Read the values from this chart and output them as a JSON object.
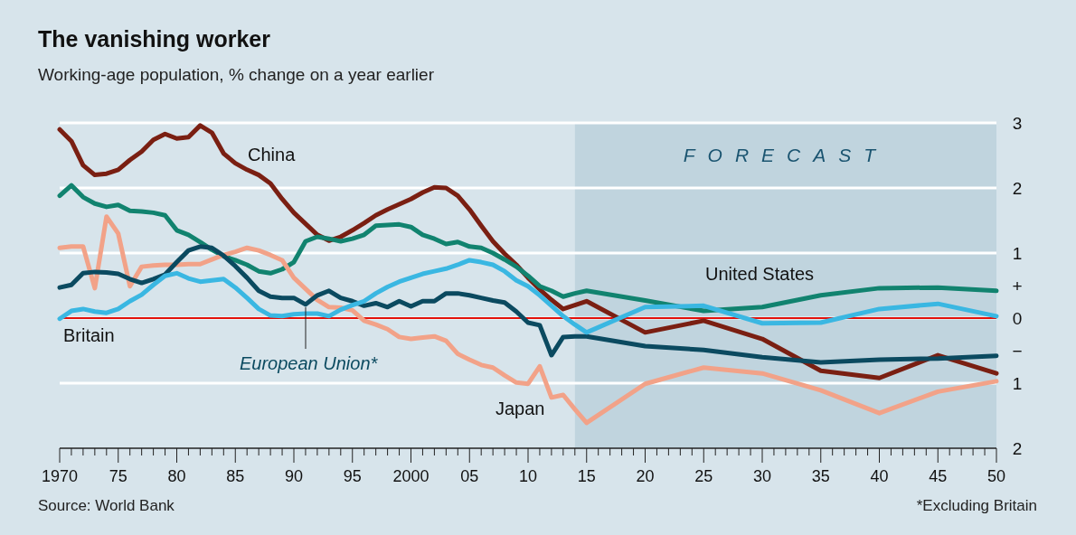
{
  "chart_data": {
    "type": "line",
    "title": "The vanishing worker",
    "subtitle": "Working-age population, % change on a year earlier",
    "xlim": [
      1970,
      2050
    ],
    "ylim": [
      -2,
      3
    ],
    "xticks": [
      {
        "value": 1970,
        "label": "1970"
      },
      {
        "value": 1971,
        "label": null
      },
      {
        "value": 1972,
        "label": null
      },
      {
        "value": 1973,
        "label": null
      },
      {
        "value": 1974,
        "label": null
      },
      {
        "value": 1975,
        "label": "75"
      },
      {
        "value": 1976,
        "label": null
      },
      {
        "value": 1977,
        "label": null
      },
      {
        "value": 1978,
        "label": null
      },
      {
        "value": 1979,
        "label": null
      },
      {
        "value": 1980,
        "label": "80"
      },
      {
        "value": 1981,
        "label": null
      },
      {
        "value": 1982,
        "label": null
      },
      {
        "value": 1983,
        "label": null
      },
      {
        "value": 1984,
        "label": null
      },
      {
        "value": 1985,
        "label": "85"
      },
      {
        "value": 1986,
        "label": null
      },
      {
        "value": 1987,
        "label": null
      },
      {
        "value": 1988,
        "label": null
      },
      {
        "value": 1989,
        "label": null
      },
      {
        "value": 1990,
        "label": "90"
      },
      {
        "value": 1991,
        "label": null
      },
      {
        "value": 1992,
        "label": null
      },
      {
        "value": 1993,
        "label": null
      },
      {
        "value": 1994,
        "label": null
      },
      {
        "value": 1995,
        "label": "95"
      },
      {
        "value": 1996,
        "label": null
      },
      {
        "value": 1997,
        "label": null
      },
      {
        "value": 1998,
        "label": null
      },
      {
        "value": 1999,
        "label": null
      },
      {
        "value": 2000,
        "label": "2000"
      },
      {
        "value": 2001,
        "label": null
      },
      {
        "value": 2002,
        "label": null
      },
      {
        "value": 2003,
        "label": null
      },
      {
        "value": 2004,
        "label": null
      },
      {
        "value": 2005,
        "label": "05"
      },
      {
        "value": 2006,
        "label": null
      },
      {
        "value": 2007,
        "label": null
      },
      {
        "value": 2008,
        "label": null
      },
      {
        "value": 2009,
        "label": null
      },
      {
        "value": 2010,
        "label": "10"
      },
      {
        "value": 2011,
        "label": null
      },
      {
        "value": 2012,
        "label": null
      },
      {
        "value": 2013,
        "label": null
      },
      {
        "value": 2014,
        "label": null
      },
      {
        "value": 2015,
        "label": "15"
      },
      {
        "value": 2016,
        "label": null
      },
      {
        "value": 2017,
        "label": null
      },
      {
        "value": 2018,
        "label": null
      },
      {
        "value": 2019,
        "label": null
      },
      {
        "value": 2020,
        "label": "20"
      },
      {
        "value": 2021,
        "label": null
      },
      {
        "value": 2022,
        "label": null
      },
      {
        "value": 2023,
        "label": null
      },
      {
        "value": 2024,
        "label": null
      },
      {
        "value": 2025,
        "label": "25"
      },
      {
        "value": 2026,
        "label": null
      },
      {
        "value": 2027,
        "label": null
      },
      {
        "value": 2028,
        "label": null
      },
      {
        "value": 2029,
        "label": null
      },
      {
        "value": 2030,
        "label": "30"
      },
      {
        "value": 2031,
        "label": null
      },
      {
        "value": 2032,
        "label": null
      },
      {
        "value": 2033,
        "label": null
      },
      {
        "value": 2034,
        "label": null
      },
      {
        "value": 2035,
        "label": "35"
      },
      {
        "value": 2036,
        "label": null
      },
      {
        "value": 2037,
        "label": null
      },
      {
        "value": 2038,
        "label": null
      },
      {
        "value": 2039,
        "label": null
      },
      {
        "value": 2040,
        "label": "40"
      },
      {
        "value": 2041,
        "label": null
      },
      {
        "value": 2042,
        "label": null
      },
      {
        "value": 2043,
        "label": null
      },
      {
        "value": 2044,
        "label": null
      },
      {
        "value": 2045,
        "label": "45"
      },
      {
        "value": 2046,
        "label": null
      },
      {
        "value": 2047,
        "label": null
      },
      {
        "value": 2048,
        "label": null
      },
      {
        "value": 2049,
        "label": null
      },
      {
        "value": 2050,
        "label": "50"
      }
    ],
    "yticks": [
      {
        "value": 3,
        "label": "3"
      },
      {
        "value": 2,
        "label": "2"
      },
      {
        "value": 1,
        "label": "1"
      },
      {
        "value": 0.5,
        "label": "+"
      },
      {
        "value": 0,
        "label": "0"
      },
      {
        "value": -0.5,
        "label": "−"
      },
      {
        "value": -1,
        "label": "1"
      },
      {
        "value": -2,
        "label": "2"
      }
    ],
    "grid": "y",
    "legend": false,
    "line_style": "solid",
    "marker": "none",
    "ref_lines": [
      {
        "axis": "y",
        "value": 0,
        "color": "#e3120b"
      }
    ],
    "bands": [
      {
        "axis": "x",
        "from": 2014,
        "to": 2050,
        "label": "FORECAST",
        "color": "#c0d4de"
      }
    ],
    "annotations": [
      "Source: World Bank",
      "*Excluding Britain"
    ],
    "series": [
      {
        "name": "China",
        "color": "#7a1f12",
        "x": [
          1970,
          1971,
          1972,
          1973,
          1974,
          1975,
          1976,
          1977,
          1978,
          1979,
          1980,
          1981,
          1982,
          1983,
          1984,
          1985,
          1986,
          1987,
          1988,
          1989,
          1990,
          1991,
          1992,
          1993,
          1994,
          1995,
          1996,
          1997,
          1998,
          1999,
          2000,
          2001,
          2002,
          2003,
          2004,
          2005,
          2006,
          2007,
          2008,
          2009,
          2010,
          2011,
          2012,
          2013,
          2014,
          2015,
          2020,
          2025,
          2030,
          2035,
          2040,
          2045,
          2050
        ],
        "values": [
          2.9,
          2.72,
          2.35,
          2.2,
          2.22,
          2.28,
          2.43,
          2.56,
          2.74,
          2.83,
          2.76,
          2.78,
          2.96,
          2.85,
          2.53,
          2.38,
          2.28,
          2.2,
          2.07,
          1.83,
          1.62,
          1.45,
          1.28,
          1.19,
          1.25,
          1.35,
          1.46,
          1.58,
          1.67,
          1.75,
          1.83,
          1.93,
          2.01,
          2.0,
          1.88,
          1.67,
          1.42,
          1.18,
          0.99,
          0.82,
          0.62,
          0.44,
          0.28,
          0.14,
          0.2,
          0.26,
          -0.22,
          -0.04,
          -0.32,
          -0.81,
          -0.92,
          -0.57,
          -0.85
        ]
      },
      {
        "name": "United States",
        "color": "#11836f",
        "x": [
          1970,
          1971,
          1972,
          1973,
          1974,
          1975,
          1976,
          1977,
          1978,
          1979,
          1980,
          1981,
          1982,
          1983,
          1984,
          1985,
          1986,
          1987,
          1988,
          1989,
          1990,
          1991,
          1992,
          1993,
          1994,
          1995,
          1996,
          1997,
          1998,
          1999,
          2000,
          2001,
          2002,
          2003,
          2004,
          2005,
          2006,
          2007,
          2008,
          2009,
          2010,
          2011,
          2012,
          2013,
          2014,
          2015,
          2020,
          2025,
          2030,
          2035,
          2040,
          2045,
          2050
        ],
        "values": [
          1.88,
          2.04,
          1.86,
          1.76,
          1.71,
          1.74,
          1.65,
          1.64,
          1.62,
          1.58,
          1.35,
          1.28,
          1.17,
          1.05,
          0.95,
          0.89,
          0.82,
          0.72,
          0.69,
          0.75,
          0.86,
          1.18,
          1.25,
          1.22,
          1.18,
          1.22,
          1.28,
          1.42,
          1.43,
          1.44,
          1.4,
          1.28,
          1.22,
          1.14,
          1.17,
          1.1,
          1.08,
          1.0,
          0.9,
          0.79,
          0.65,
          0.49,
          0.42,
          0.33,
          0.38,
          0.42,
          0.27,
          0.11,
          0.17,
          0.35,
          0.46,
          0.47,
          0.42
        ]
      },
      {
        "name": "Japan",
        "color": "#f2a288",
        "x": [
          1970,
          1971,
          1972,
          1973,
          1974,
          1975,
          1976,
          1977,
          1978,
          1979,
          1980,
          1981,
          1982,
          1983,
          1984,
          1985,
          1986,
          1987,
          1988,
          1989,
          1990,
          1991,
          1992,
          1993,
          1994,
          1995,
          1996,
          1997,
          1998,
          1999,
          2000,
          2001,
          2002,
          2003,
          2004,
          2005,
          2006,
          2007,
          2008,
          2009,
          2010,
          2011,
          2012,
          2013,
          2014,
          2015,
          2020,
          2025,
          2030,
          2035,
          2040,
          2045,
          2050
        ],
        "values": [
          1.08,
          1.1,
          1.1,
          0.46,
          1.56,
          1.3,
          0.49,
          0.79,
          0.81,
          0.82,
          0.82,
          0.83,
          0.83,
          0.9,
          0.97,
          1.02,
          1.08,
          1.04,
          0.97,
          0.89,
          0.62,
          0.45,
          0.28,
          0.17,
          0.16,
          0.12,
          -0.04,
          -0.1,
          -0.17,
          -0.29,
          -0.32,
          -0.3,
          -0.28,
          -0.35,
          -0.55,
          -0.64,
          -0.72,
          -0.76,
          -0.88,
          -0.99,
          -1.01,
          -0.74,
          -1.22,
          -1.18,
          -1.4,
          -1.61,
          -1.01,
          -0.76,
          -0.85,
          -1.11,
          -1.46,
          -1.13,
          -0.97
        ]
      },
      {
        "name": "European Union*",
        "color": "#0b4a60",
        "x": [
          1970,
          1971,
          1972,
          1973,
          1974,
          1975,
          1976,
          1977,
          1978,
          1979,
          1980,
          1981,
          1982,
          1983,
          1984,
          1985,
          1986,
          1987,
          1988,
          1989,
          1990,
          1991,
          1992,
          1993,
          1994,
          1995,
          1996,
          1997,
          1998,
          1999,
          2000,
          2001,
          2002,
          2003,
          2004,
          2005,
          2006,
          2007,
          2008,
          2009,
          2010,
          2011,
          2012,
          2013,
          2014,
          2015,
          2020,
          2025,
          2030,
          2035,
          2040,
          2045,
          2050
        ],
        "values": [
          0.47,
          0.51,
          0.69,
          0.71,
          0.7,
          0.68,
          0.6,
          0.54,
          0.6,
          0.67,
          0.86,
          1.04,
          1.1,
          1.08,
          0.96,
          0.8,
          0.62,
          0.42,
          0.33,
          0.31,
          0.31,
          0.21,
          0.35,
          0.42,
          0.31,
          0.26,
          0.19,
          0.23,
          0.17,
          0.26,
          0.18,
          0.26,
          0.26,
          0.38,
          0.38,
          0.35,
          0.31,
          0.27,
          0.24,
          0.1,
          -0.07,
          -0.11,
          -0.57,
          -0.29,
          -0.28,
          -0.28,
          -0.43,
          -0.49,
          -0.6,
          -0.68,
          -0.64,
          -0.62,
          -0.58
        ]
      },
      {
        "name": "Britain",
        "color": "#3ab7e2",
        "x": [
          1970,
          1971,
          1972,
          1973,
          1974,
          1975,
          1976,
          1977,
          1978,
          1979,
          1980,
          1981,
          1982,
          1983,
          1984,
          1985,
          1986,
          1987,
          1988,
          1989,
          1990,
          1991,
          1992,
          1993,
          1994,
          1995,
          1996,
          1997,
          1998,
          1999,
          2000,
          2001,
          2002,
          2003,
          2004,
          2005,
          2006,
          2007,
          2008,
          2009,
          2010,
          2011,
          2012,
          2013,
          2014,
          2015,
          2020,
          2025,
          2030,
          2035,
          2040,
          2045,
          2050
        ],
        "values": [
          -0.01,
          0.11,
          0.14,
          0.1,
          0.08,
          0.14,
          0.26,
          0.36,
          0.51,
          0.65,
          0.69,
          0.61,
          0.56,
          0.58,
          0.6,
          0.47,
          0.31,
          0.14,
          0.04,
          0.03,
          0.06,
          0.07,
          0.07,
          0.03,
          0.13,
          0.2,
          0.26,
          0.38,
          0.48,
          0.56,
          0.62,
          0.68,
          0.72,
          0.76,
          0.82,
          0.89,
          0.86,
          0.82,
          0.72,
          0.58,
          0.49,
          0.35,
          0.19,
          0.03,
          -0.1,
          -0.22,
          0.17,
          0.19,
          -0.08,
          -0.07,
          0.14,
          0.22,
          0.03
        ]
      }
    ]
  }
}
